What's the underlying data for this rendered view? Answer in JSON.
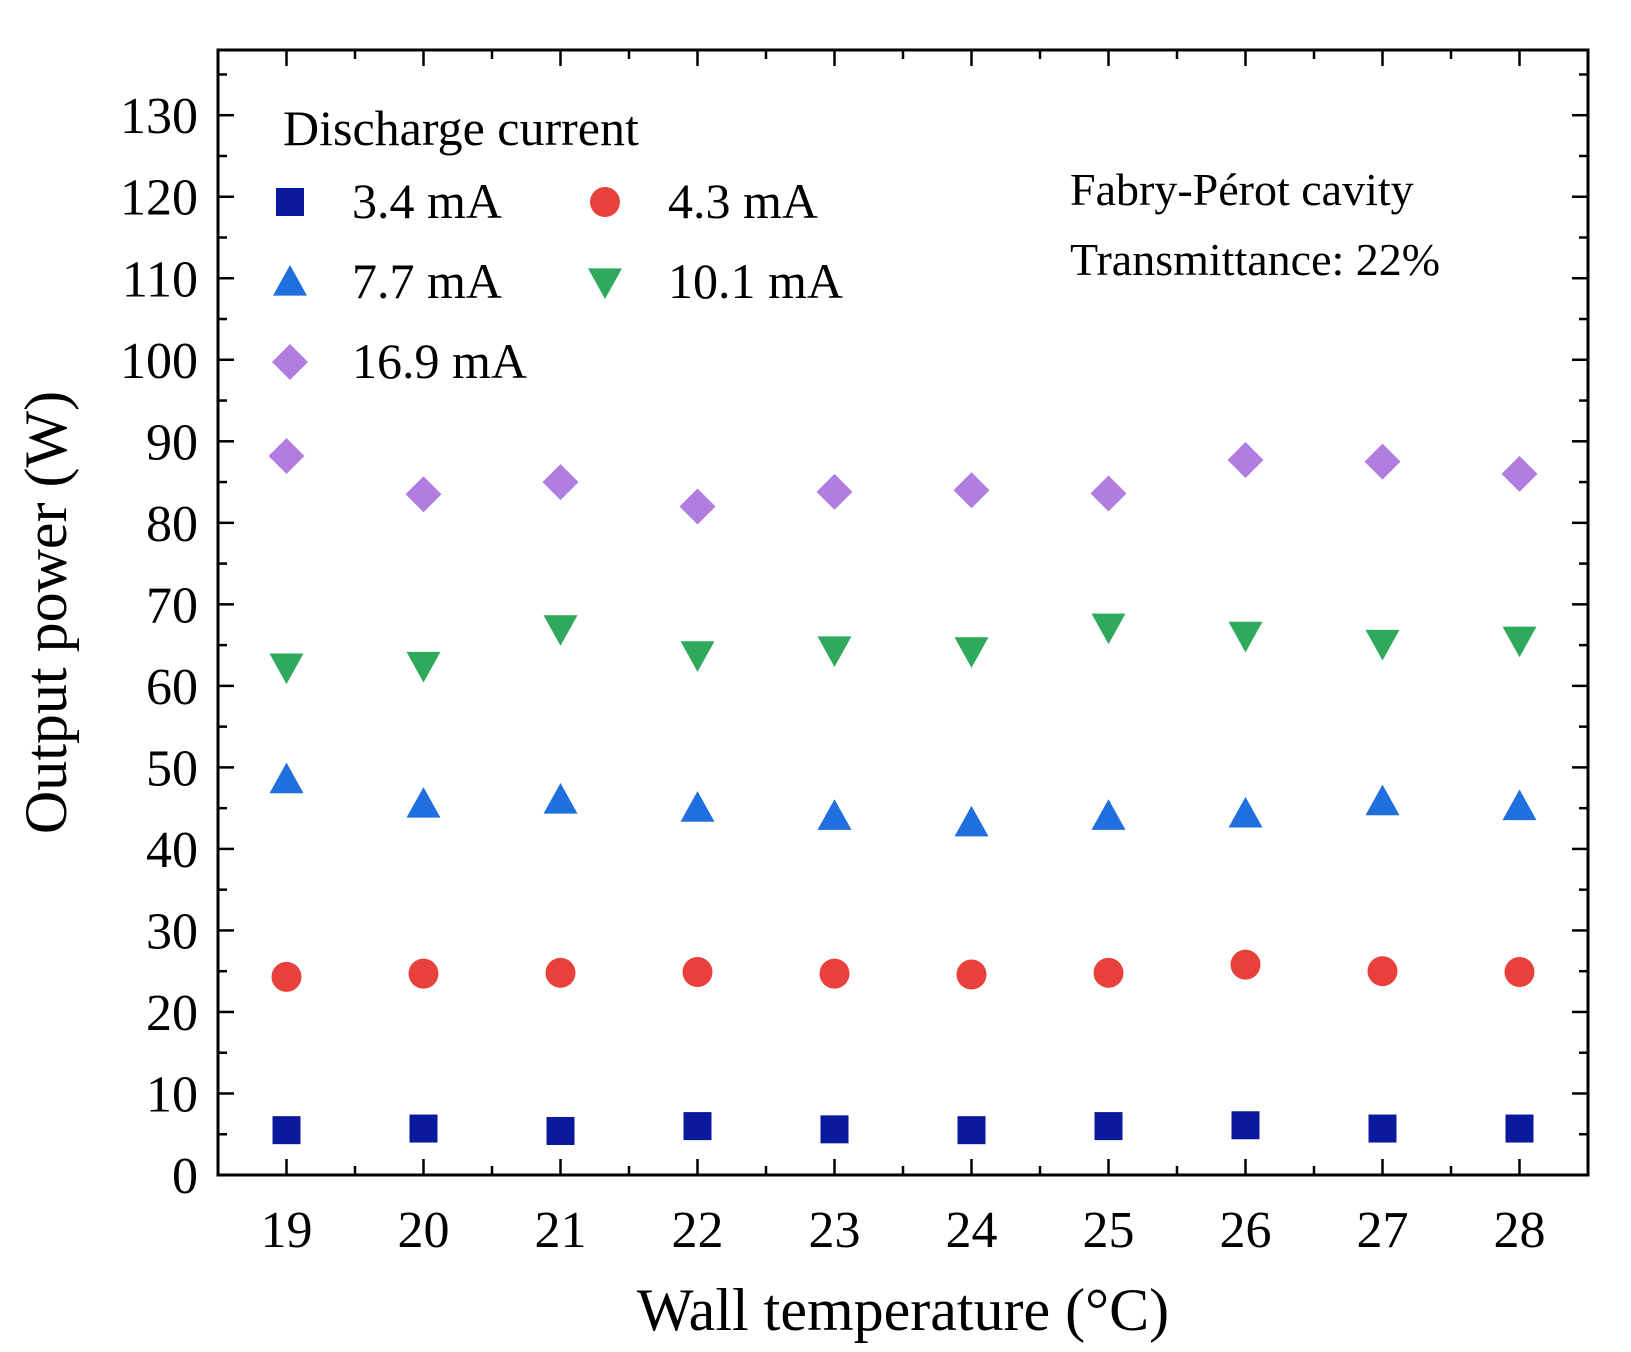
{
  "chart_data": {
    "type": "scatter",
    "title": "",
    "xlabel": "Wall temperature (°C)",
    "ylabel": "Output power (W)",
    "xlim": [
      18.5,
      28.5
    ],
    "ylim": [
      0,
      138
    ],
    "x": [
      19,
      20,
      21,
      22,
      23,
      24,
      25,
      26,
      27,
      28
    ],
    "x_ticks": [
      "19",
      "20",
      "21",
      "22",
      "23",
      "24",
      "25",
      "26",
      "27",
      "28"
    ],
    "y_ticks": [
      "0",
      "10",
      "20",
      "30",
      "40",
      "50",
      "60",
      "70",
      "80",
      "90",
      "100",
      "110",
      "120",
      "130"
    ],
    "legend_title": "Discharge current",
    "legend_position": "top-left",
    "annotation": [
      "Fabry-Pérot  cavity",
      "Transmittance: 22%"
    ],
    "series": [
      {
        "name": "3.4 mA",
        "marker": "square",
        "color": "#0b1a9c",
        "values": [
          5.5,
          5.7,
          5.4,
          6.0,
          5.6,
          5.5,
          6.0,
          6.1,
          5.7,
          5.7
        ]
      },
      {
        "name": "4.3 mA",
        "marker": "circle",
        "color": "#e8413c",
        "values": [
          24.3,
          24.7,
          24.8,
          24.9,
          24.7,
          24.6,
          24.8,
          25.8,
          25.0,
          24.9
        ]
      },
      {
        "name": "7.7 mA",
        "marker": "triangle-up",
        "color": "#1f6fde",
        "values": [
          48.5,
          45.5,
          46.0,
          45.0,
          44.0,
          43.2,
          44.0,
          44.3,
          45.8,
          45.2
        ]
      },
      {
        "name": "10.1 mA",
        "marker": "triangle-down",
        "color": "#2faa5c",
        "values": [
          62.3,
          62.5,
          67.0,
          63.8,
          64.4,
          64.3,
          67.2,
          66.2,
          65.2,
          65.6
        ]
      },
      {
        "name": "16.9 mA",
        "marker": "diamond",
        "color": "#b07ee0",
        "values": [
          88.2,
          83.5,
          85.0,
          82.0,
          83.8,
          84.0,
          83.6,
          87.7,
          87.5,
          86.0
        ]
      }
    ]
  }
}
